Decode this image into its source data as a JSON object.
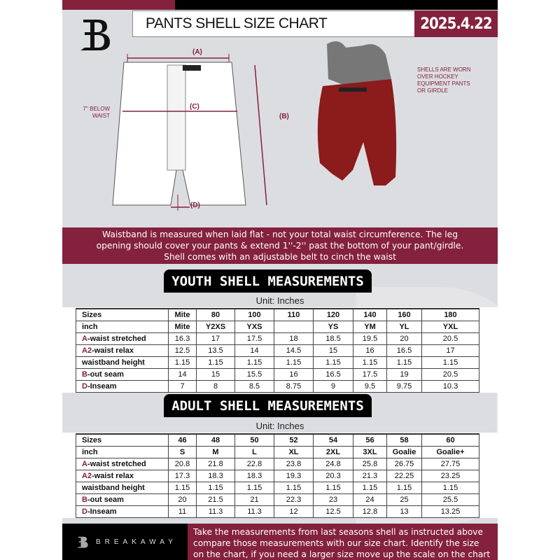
{
  "header": {
    "title": "PANTS SHELL SIZE CHART",
    "date": "2025.4.22"
  },
  "diagram": {
    "label_a": "(A)",
    "label_b": "(B)",
    "label_c": "(C)",
    "label_d": "(D)",
    "waist_note": [
      "7'' BELOW",
      "WAIST"
    ],
    "shell_note": [
      "SHELLS ARE WORN",
      "OVER HOCKEY",
      "EQUIPMENT PANTS",
      "OR GIRDLE"
    ]
  },
  "banner": {
    "lines": [
      "Waistband is measured when laid flat - not your total waist circumference. The leg",
      "opening should cover your pants & extend 1''-2'' past the bottom of your pant/girdle.",
      "Shell comes with an adjustable belt to cinch the waist"
    ]
  },
  "colors": {
    "accent": "#84213d",
    "black": "#000000",
    "background": "#dcdde1"
  },
  "youth": {
    "title": "YOUTH SHELL MEASUREMENTS",
    "unit": "Unit: Inches",
    "rows": [
      {
        "prefix": "",
        "label": "Sizes",
        "values": [
          "Mite",
          "80",
          "100",
          "110",
          "120",
          "140",
          "160",
          "180"
        ]
      },
      {
        "prefix": "",
        "label": "inch",
        "values": [
          "Mite",
          "Y2XS",
          "YXS",
          "",
          "YS",
          "YM",
          "YL",
          "YXL"
        ]
      },
      {
        "prefix": "A",
        "label": "-waist stretched",
        "values": [
          "16.3",
          "17",
          "17.5",
          "18",
          "18.5",
          "19.5",
          "20",
          "20.5"
        ]
      },
      {
        "prefix": "A2",
        "label": "-waist relax",
        "values": [
          "12.5",
          "13.5",
          "14",
          "14.5",
          "15",
          "16",
          "16.5",
          "17"
        ]
      },
      {
        "prefix": "",
        "label": "waistband height",
        "values": [
          "1.15",
          "1.15",
          "1.15",
          "1.15",
          "1.15",
          "1.15",
          "1.15",
          "1.15"
        ]
      },
      {
        "prefix": "B",
        "label": "-out seam",
        "values": [
          "14",
          "15",
          "15.5",
          "16",
          "16.5",
          "17.5",
          "19",
          "20.5"
        ]
      },
      {
        "prefix": "D",
        "label": "-Inseam",
        "values": [
          "7",
          "8",
          "8.5",
          "8.75",
          "9",
          "9.5",
          "9.75",
          "10.3"
        ]
      }
    ]
  },
  "adult": {
    "title": "ADULT SHELL MEASUREMENTS",
    "unit": "Unit: Inches",
    "rows": [
      {
        "prefix": "",
        "label": "Sizes",
        "values": [
          "46",
          "48",
          "50",
          "52",
          "54",
          "56",
          "58",
          "60"
        ]
      },
      {
        "prefix": "",
        "label": "inch",
        "values": [
          "S",
          "M",
          "L",
          "XL",
          "2XL",
          "3XL",
          "Goalie",
          "Goalie+"
        ]
      },
      {
        "prefix": "A",
        "label": "-waist stretched",
        "values": [
          "20.8",
          "21.8",
          "22.8",
          "23.8",
          "24.8",
          "25.8",
          "26.75",
          "27.75"
        ]
      },
      {
        "prefix": "A2",
        "label": "-waist relax",
        "values": [
          "17.3",
          "18.3",
          "18.3",
          "19.3",
          "20.3",
          "21.3",
          "22.25",
          "23.25"
        ]
      },
      {
        "prefix": "",
        "label": "waistband height",
        "values": [
          "1.15",
          "1.15",
          "1.15",
          "1.15",
          "1.15",
          "1.15",
          "1.15",
          "1.15"
        ]
      },
      {
        "prefix": "B",
        "label": "-out seam",
        "values": [
          "20",
          "21.5",
          "21",
          "22.3",
          "23",
          "24",
          "25",
          "25.5"
        ]
      },
      {
        "prefix": "D",
        "label": "-Inseam",
        "values": [
          "11",
          "11.3",
          "11.3",
          "12",
          "12.5",
          "12.8",
          "13",
          "13.25"
        ]
      }
    ]
  },
  "footer": {
    "brand": "BREAKAWAY",
    "lines": [
      "Take the measurements from last seasons shell as instructed above",
      "compare those measurements  with our size chart. Identify the size",
      "on the chart, if you need a larger size move up the scale on the chart"
    ]
  }
}
